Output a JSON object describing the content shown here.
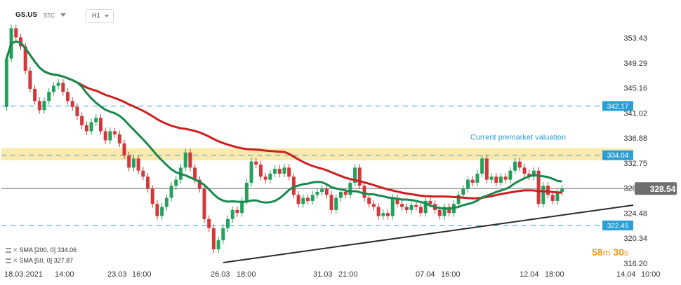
{
  "header": {
    "symbol": "GS.US",
    "market": "STC",
    "timeframe": "H1"
  },
  "chart_data": {
    "type": "candlestick",
    "y_ticks": [
      "353.43",
      "349.29",
      "345.16",
      "341.02",
      "336.88",
      "332.75",
      "328.61",
      "324.48",
      "320.34",
      "316.20"
    ],
    "x_ticks": [
      "18.03.2021",
      "14:00",
      "23.03",
      "16:00",
      "26.03",
      "18:00",
      "31.03",
      "21:00",
      "07.04",
      "16:00",
      "12.04",
      "18:00",
      "14.04",
      "10:00"
    ],
    "ylim": [
      316.2,
      353.43
    ],
    "last_price": 328.54,
    "levels": [
      {
        "value": 342.17,
        "label": "342.17"
      },
      {
        "value": 334.04,
        "label": "334.04"
      },
      {
        "value": 322.45,
        "label": "322.45"
      }
    ],
    "zone": {
      "low": 333.2,
      "high": 335.2,
      "note": "Current premarket valuation"
    },
    "indicators": [
      {
        "name": "SMA [200, 0]",
        "value": "334.06",
        "color": "#cc1f1f"
      },
      {
        "name": "SMA [50, 0]",
        "value": "327.87",
        "color": "#17894e"
      }
    ],
    "countdown": {
      "minutes": "58",
      "seconds": "30",
      "m": "m",
      "s": "s"
    },
    "candles": [
      [
        342.0,
        350.0
      ],
      [
        350.0,
        355.0
      ],
      [
        355.0,
        353.5
      ],
      [
        353.5,
        352.0
      ],
      [
        352.0,
        348.0
      ],
      [
        348.0,
        345.0
      ],
      [
        345.0,
        343.0
      ],
      [
        343.0,
        341.5
      ],
      [
        341.5,
        343.0
      ],
      [
        343.0,
        344.5
      ],
      [
        344.5,
        345.5
      ],
      [
        345.5,
        346.0
      ],
      [
        346.0,
        344.5
      ],
      [
        344.5,
        343.0
      ],
      [
        343.0,
        342.0
      ],
      [
        342.0,
        340.5
      ],
      [
        340.5,
        339.0
      ],
      [
        339.0,
        338.0
      ],
      [
        338.0,
        339.5
      ],
      [
        339.5,
        340.2
      ],
      [
        340.2,
        338.0
      ],
      [
        338.0,
        336.5
      ],
      [
        336.5,
        338.0
      ],
      [
        338.0,
        337.5
      ],
      [
        337.5,
        336.0
      ],
      [
        336.0,
        334.0
      ],
      [
        334.0,
        332.0
      ],
      [
        332.0,
        333.5
      ],
      [
        333.5,
        331.5
      ],
      [
        331.5,
        330.5
      ],
      [
        330.5,
        328.5
      ],
      [
        328.5,
        326.0
      ],
      [
        326.0,
        324.0
      ],
      [
        324.0,
        325.5
      ],
      [
        325.5,
        327.0
      ],
      [
        327.0,
        329.0
      ],
      [
        329.0,
        330.0
      ],
      [
        330.0,
        332.0
      ],
      [
        332.0,
        334.5
      ],
      [
        334.5,
        332.0
      ],
      [
        332.0,
        330.0
      ],
      [
        330.0,
        328.5
      ],
      [
        328.5,
        323.5
      ],
      [
        323.5,
        322.0
      ],
      [
        322.0,
        318.5
      ],
      [
        318.5,
        320.0
      ],
      [
        320.0,
        322.0
      ],
      [
        322.0,
        323.5
      ],
      [
        323.5,
        325.0
      ],
      [
        325.0,
        324.5
      ],
      [
        324.5,
        326.5
      ],
      [
        326.5,
        329.5
      ],
      [
        329.5,
        333.0
      ],
      [
        333.0,
        332.5
      ],
      [
        332.5,
        330.5
      ],
      [
        330.5,
        330.0
      ],
      [
        330.0,
        331.0
      ],
      [
        331.0,
        331.8
      ],
      [
        331.8,
        331.0
      ],
      [
        331.0,
        332.0
      ],
      [
        332.0,
        330.5
      ],
      [
        330.5,
        327.5
      ],
      [
        327.5,
        326.0
      ],
      [
        326.0,
        327.0
      ],
      [
        327.0,
        326.5
      ],
      [
        326.5,
        327.5
      ],
      [
        327.5,
        328.0
      ],
      [
        328.0,
        328.5
      ],
      [
        328.5,
        327.5
      ],
      [
        327.5,
        325.0
      ],
      [
        325.0,
        327.0
      ],
      [
        327.0,
        328.0
      ],
      [
        328.0,
        327.5
      ],
      [
        327.5,
        329.5
      ],
      [
        329.5,
        332.0
      ],
      [
        332.0,
        329.0
      ],
      [
        329.0,
        327.0
      ],
      [
        327.0,
        326.0
      ],
      [
        326.0,
        325.5
      ],
      [
        325.5,
        324.0
      ],
      [
        324.0,
        324.5
      ],
      [
        324.5,
        324.0
      ],
      [
        324.0,
        327.0
      ],
      [
        327.0,
        326.0
      ],
      [
        326.0,
        325.5
      ],
      [
        325.5,
        325.0
      ],
      [
        325.0,
        325.8
      ],
      [
        325.8,
        325.5
      ],
      [
        325.5,
        324.5
      ],
      [
        324.5,
        326.5
      ],
      [
        326.5,
        326.0
      ],
      [
        326.0,
        325.0
      ],
      [
        325.0,
        324.0
      ],
      [
        324.0,
        325.5
      ],
      [
        325.5,
        324.5
      ],
      [
        324.5,
        326.0
      ],
      [
        326.0,
        327.5
      ],
      [
        327.5,
        328.5
      ],
      [
        328.5,
        330.0
      ],
      [
        330.0,
        329.5
      ],
      [
        329.5,
        331.0
      ],
      [
        331.0,
        333.5
      ],
      [
        333.5,
        330.0
      ],
      [
        330.0,
        330.5
      ],
      [
        330.5,
        329.5
      ],
      [
        329.5,
        330.5
      ],
      [
        330.5,
        330.0
      ],
      [
        330.0,
        331.5
      ],
      [
        331.5,
        333.0
      ],
      [
        333.0,
        332.0
      ],
      [
        332.0,
        331.0
      ],
      [
        331.0,
        330.5
      ],
      [
        330.5,
        331.5
      ],
      [
        331.5,
        326.0
      ],
      [
        326.0,
        329.0
      ],
      [
        329.0,
        327.5
      ],
      [
        327.5,
        326.5
      ],
      [
        326.5,
        328.0
      ],
      [
        328.0,
        328.5
      ]
    ]
  }
}
